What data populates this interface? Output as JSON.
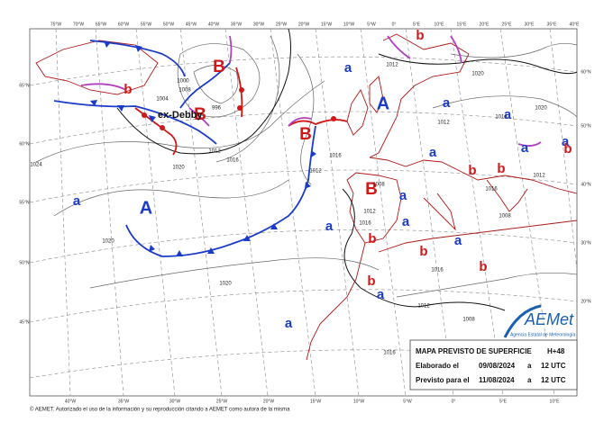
{
  "header": {
    "longitudes_top": [
      "75°W",
      "70°W",
      "65°W",
      "60°W",
      "55°W",
      "50°W",
      "45°W",
      "40°W",
      "35°W",
      "30°W",
      "25°W",
      "20°W",
      "15°W",
      "10°W",
      "5°W",
      "0°",
      "5°E",
      "10°E",
      "15°E",
      "20°E",
      "25°E",
      "30°E",
      "35°E",
      "40°E"
    ]
  },
  "side": {
    "latitudes_left": [
      "65°N",
      "60°N",
      "55°N",
      "50°N",
      "45°N"
    ],
    "latitudes_right": [
      "60°N",
      "50°N",
      "40°N",
      "30°N",
      "20°N"
    ]
  },
  "map": {
    "highs_major": [
      "A",
      "A"
    ],
    "highs_minor": [
      "a",
      "a",
      "a",
      "a",
      "a",
      "a",
      "a",
      "a",
      "a",
      "a",
      "a",
      "a",
      "a"
    ],
    "lows_major": [
      "B",
      "B",
      "B",
      "B"
    ],
    "lows_minor": [
      "b",
      "b",
      "b",
      "b",
      "b",
      "b",
      "b",
      "b",
      "b"
    ],
    "storm_label": "ex-Debby",
    "isobar_labels": [
      "1012",
      "1012",
      "1020",
      "1024",
      "1008",
      "1004",
      "1000",
      "996",
      "1016",
      "1012",
      "1016",
      "1020",
      "1020",
      "1012",
      "1016",
      "1008",
      "1016",
      "1012",
      "1020",
      "1016",
      "1008",
      "1012",
      "1016",
      "1012",
      "1020",
      "1016",
      "1008"
    ]
  },
  "legend_box": {
    "title": "MAPA PREVISTO DE SUPERFICIE",
    "range": "H+48",
    "issued_label": "Elaborado el",
    "issued_date": "09/08/2024",
    "issued_at": "a",
    "issued_time": "12 UTC",
    "valid_label": "Previsto para el",
    "valid_date": "11/08/2024",
    "valid_at": "a",
    "valid_time": "12 UTC"
  },
  "logo": {
    "name": "AEMet",
    "subtitle": "Agencia Estatal de Meteorología"
  },
  "footer": {
    "longitudes_bottom": [
      "40°W",
      "35°W",
      "30°W",
      "25°W",
      "20°W",
      "15°W",
      "10°W",
      "5°W",
      "0°",
      "5°E",
      "10°E"
    ],
    "copyright": "© AEMET. Autorizado el uso de la información y su reproducción citando a AEMET como autora de la misma"
  }
}
